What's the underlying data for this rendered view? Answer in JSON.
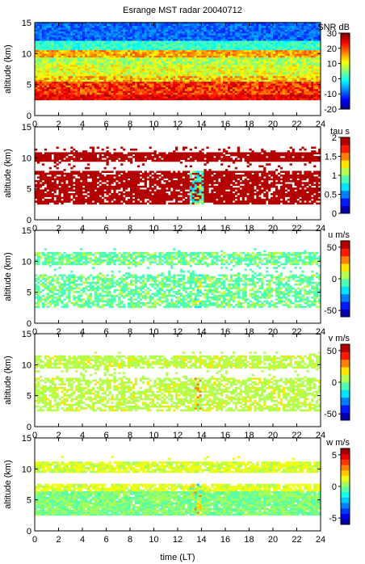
{
  "chart_data": {
    "title": "Esrange MST radar 20040712",
    "xlabel": "time (LT)",
    "xlim": [
      0,
      24
    ],
    "x_ticks": [
      "0",
      "2",
      "4",
      "6",
      "8",
      "10",
      "12",
      "14",
      "16",
      "18",
      "20",
      "22",
      "24"
    ],
    "type": "heatmap",
    "panels": [
      {
        "name": "snr",
        "ylabel": "altitude (km)",
        "ylim": [
          0,
          15
        ],
        "y_ticks": [
          "0",
          "5",
          "10",
          "15"
        ],
        "colorbar_label": "SNR dB",
        "clim": [
          -20,
          30
        ],
        "colorbar_ticks": [
          "30",
          "20",
          "10",
          "0",
          "-10",
          "-20"
        ],
        "data_altitude_range": [
          2.5,
          15
        ]
      },
      {
        "name": "tau",
        "ylabel": "altitude (km)",
        "ylim": [
          0,
          15
        ],
        "y_ticks": [
          "0",
          "5",
          "10",
          "15"
        ],
        "colorbar_label": "tau s",
        "clim": [
          0,
          2
        ],
        "colorbar_ticks": [
          "2",
          "1.5",
          "1",
          "0.5",
          "0"
        ],
        "data_altitude_range": [
          2.5,
          12
        ]
      },
      {
        "name": "u",
        "ylabel": "altitude (km)",
        "ylim": [
          0,
          15
        ],
        "y_ticks": [
          "0",
          "5",
          "10",
          "15"
        ],
        "colorbar_label": "u m/s",
        "clim": [
          -60,
          60
        ],
        "colorbar_ticks": [
          "50",
          "0",
          "-50"
        ],
        "data_altitude_range": [
          2.5,
          12
        ]
      },
      {
        "name": "v",
        "ylabel": "altitude (km)",
        "ylim": [
          0,
          15
        ],
        "y_ticks": [
          "0",
          "5",
          "10",
          "15"
        ],
        "colorbar_label": "v m/s",
        "clim": [
          -60,
          60
        ],
        "colorbar_ticks": [
          "50",
          "0",
          "-50"
        ],
        "data_altitude_range": [
          2.5,
          12
        ]
      },
      {
        "name": "w",
        "ylabel": "altitude (km)",
        "ylim": [
          0,
          15
        ],
        "y_ticks": [
          "0",
          "5",
          "10",
          "15"
        ],
        "colorbar_label": "w m/s",
        "clim": [
          -6,
          6
        ],
        "colorbar_ticks": [
          "5",
          "0",
          "-5"
        ],
        "data_altitude_range": [
          2.5,
          12
        ]
      }
    ]
  }
}
